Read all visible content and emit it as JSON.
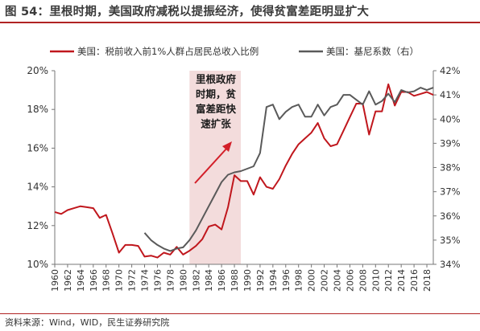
{
  "figure": {
    "title": "图 54：里根时期，美国政府减税以提振经济，使得贫富差距明显扩大",
    "source": "资料来源：Wind，WID，民生证券研究院"
  },
  "colors": {
    "red": "#c0171d",
    "gray": "#5a5a5a",
    "shade": "#f3dcdc",
    "arrow": "#d3202a",
    "axis": "#777777"
  },
  "chart_data": {
    "type": "line",
    "years_tick_labels": [
      "1960",
      "1962",
      "1964",
      "1966",
      "1968",
      "1970",
      "1972",
      "1974",
      "1976",
      "1978",
      "1980",
      "1982",
      "1984",
      "1986",
      "1988",
      "1990",
      "1992",
      "1994",
      "1996",
      "1998",
      "2000",
      "2002",
      "2004",
      "2006",
      "2008",
      "2010",
      "2012",
      "2014",
      "2016",
      "2018"
    ],
    "y_left": {
      "ticks": [
        "10%",
        "12%",
        "14%",
        "16%",
        "18%",
        "20%"
      ],
      "range": [
        10,
        20
      ]
    },
    "y_right": {
      "ticks": [
        "34%",
        "35%",
        "36%",
        "37%",
        "38%",
        "39%",
        "40%",
        "41%",
        "42%"
      ],
      "range": [
        34,
        42
      ]
    },
    "shaded_period": [
      1981,
      1989
    ],
    "annotation": [
      "里根政府",
      "时期，贫",
      "富差距快",
      "速扩张"
    ],
    "series": [
      {
        "name": "美国：税前收入前1%人群占居民总收入比例",
        "axis": "left",
        "x": [
          1960,
          1961,
          1962,
          1963,
          1964,
          1965,
          1966,
          1967,
          1968,
          1969,
          1970,
          1971,
          1972,
          1973,
          1974,
          1975,
          1976,
          1977,
          1978,
          1979,
          1980,
          1981,
          1982,
          1983,
          1984,
          1985,
          1986,
          1987,
          1988,
          1989,
          1990,
          1991,
          1992,
          1993,
          1994,
          1995,
          1996,
          1997,
          1998,
          1999,
          2000,
          2001,
          2002,
          2003,
          2004,
          2005,
          2006,
          2007,
          2008,
          2009,
          2010,
          2011,
          2012,
          2013,
          2014,
          2015,
          2016,
          2017,
          2018,
          2019
        ],
        "y": [
          12.7,
          12.6,
          12.8,
          12.9,
          13.0,
          12.95,
          12.9,
          12.4,
          12.55,
          11.6,
          10.6,
          11.0,
          11.0,
          10.95,
          10.4,
          10.45,
          10.35,
          10.6,
          10.5,
          10.9,
          10.5,
          10.7,
          10.95,
          11.3,
          11.95,
          12.05,
          11.8,
          12.95,
          14.6,
          14.3,
          14.3,
          13.6,
          14.5,
          14.0,
          13.9,
          14.4,
          15.1,
          15.7,
          16.2,
          16.5,
          16.8,
          17.3,
          16.5,
          16.1,
          16.2,
          16.9,
          17.6,
          18.3,
          18.3,
          16.7,
          17.9,
          17.9,
          19.3,
          18.2,
          18.9,
          18.9,
          18.7,
          18.8,
          18.9,
          18.75
        ]
      },
      {
        "name": "美国：基尼系数（右）",
        "axis": "right",
        "x": [
          1974,
          1975,
          1976,
          1977,
          1978,
          1979,
          1980,
          1981,
          1982,
          1983,
          1984,
          1985,
          1986,
          1987,
          1988,
          1989,
          1990,
          1991,
          1992,
          1993,
          1994,
          1995,
          1996,
          1997,
          1998,
          1999,
          2000,
          2001,
          2002,
          2003,
          2004,
          2005,
          2006,
          2007,
          2008,
          2009,
          2010,
          2011,
          2012,
          2013,
          2014,
          2015,
          2016,
          2017,
          2018,
          2019
        ],
        "y": [
          35.3,
          35.0,
          34.8,
          34.65,
          34.55,
          34.65,
          34.7,
          35.0,
          35.4,
          35.9,
          36.4,
          36.9,
          37.4,
          37.7,
          37.8,
          37.85,
          37.95,
          38.05,
          38.6,
          40.5,
          40.6,
          40.0,
          40.3,
          40.5,
          40.6,
          40.1,
          40.1,
          40.6,
          40.15,
          40.5,
          40.6,
          41.0,
          41.0,
          40.8,
          40.6,
          41.15,
          40.6,
          40.75,
          41.05,
          40.7,
          41.2,
          41.1,
          41.15,
          41.3,
          41.2,
          41.3
        ]
      }
    ]
  }
}
